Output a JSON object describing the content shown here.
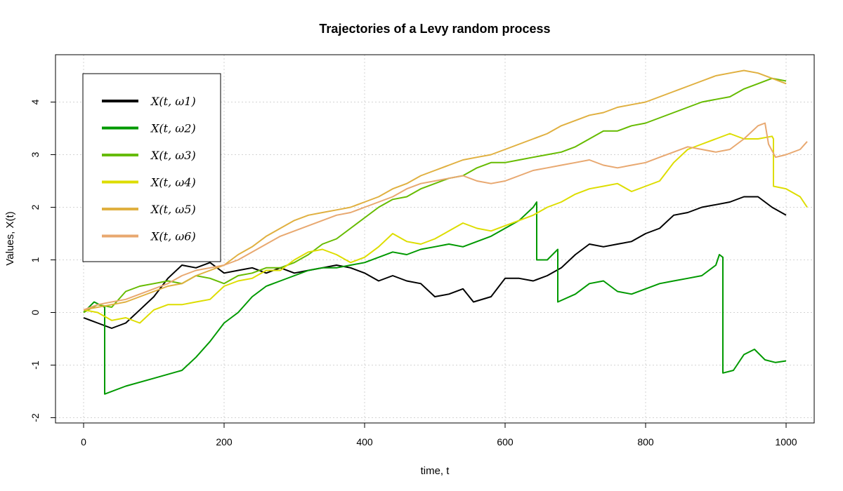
{
  "chart_data": {
    "type": "line",
    "title": "Trajectories of a Levy random process",
    "xlabel": "time, t",
    "ylabel": "Values, X(t)",
    "xlim": [
      -40,
      1040
    ],
    "ylim": [
      -2.1,
      4.9
    ],
    "xticks": [
      0,
      200,
      400,
      600,
      800,
      1000
    ],
    "yticks": [
      -2,
      -1,
      0,
      1,
      2,
      3,
      4
    ],
    "grid": true,
    "legend_position": "top-left",
    "series": [
      {
        "name": "X(t, ω1)",
        "color": "#000000",
        "points": [
          [
            0,
            -0.1
          ],
          [
            20,
            -0.2
          ],
          [
            40,
            -0.3
          ],
          [
            60,
            -0.2
          ],
          [
            80,
            0.05
          ],
          [
            100,
            0.3
          ],
          [
            120,
            0.65
          ],
          [
            140,
            0.9
          ],
          [
            160,
            0.85
          ],
          [
            180,
            0.95
          ],
          [
            200,
            0.75
          ],
          [
            220,
            0.8
          ],
          [
            240,
            0.85
          ],
          [
            260,
            0.75
          ],
          [
            280,
            0.85
          ],
          [
            300,
            0.75
          ],
          [
            320,
            0.8
          ],
          [
            340,
            0.85
          ],
          [
            360,
            0.9
          ],
          [
            380,
            0.85
          ],
          [
            400,
            0.75
          ],
          [
            420,
            0.6
          ],
          [
            440,
            0.7
          ],
          [
            460,
            0.6
          ],
          [
            480,
            0.55
          ],
          [
            500,
            0.3
          ],
          [
            520,
            0.35
          ],
          [
            540,
            0.45
          ],
          [
            555,
            0.2
          ],
          [
            580,
            0.3
          ],
          [
            600,
            0.65
          ],
          [
            620,
            0.65
          ],
          [
            640,
            0.6
          ],
          [
            660,
            0.7
          ],
          [
            680,
            0.85
          ],
          [
            700,
            1.1
          ],
          [
            720,
            1.3
          ],
          [
            740,
            1.25
          ],
          [
            760,
            1.3
          ],
          [
            780,
            1.35
          ],
          [
            800,
            1.5
          ],
          [
            820,
            1.6
          ],
          [
            840,
            1.85
          ],
          [
            860,
            1.9
          ],
          [
            880,
            2.0
          ],
          [
            900,
            2.05
          ],
          [
            920,
            2.1
          ],
          [
            940,
            2.2
          ],
          [
            960,
            2.2
          ],
          [
            980,
            2.0
          ],
          [
            1000,
            1.85
          ]
        ]
      },
      {
        "name": "X(t, ω2)",
        "color": "#009900",
        "points": [
          [
            0,
            0.0
          ],
          [
            15,
            0.2
          ],
          [
            30,
            0.1
          ],
          [
            30,
            -1.55
          ],
          [
            60,
            -1.4
          ],
          [
            100,
            -1.25
          ],
          [
            140,
            -1.1
          ],
          [
            160,
            -0.85
          ],
          [
            180,
            -0.55
          ],
          [
            200,
            -0.2
          ],
          [
            220,
            0.0
          ],
          [
            240,
            0.3
          ],
          [
            260,
            0.5
          ],
          [
            280,
            0.6
          ],
          [
            300,
            0.7
          ],
          [
            320,
            0.8
          ],
          [
            340,
            0.85
          ],
          [
            360,
            0.85
          ],
          [
            380,
            0.9
          ],
          [
            400,
            0.95
          ],
          [
            420,
            1.05
          ],
          [
            440,
            1.15
          ],
          [
            460,
            1.1
          ],
          [
            480,
            1.2
          ],
          [
            500,
            1.25
          ],
          [
            520,
            1.3
          ],
          [
            540,
            1.25
          ],
          [
            560,
            1.35
          ],
          [
            580,
            1.45
          ],
          [
            600,
            1.6
          ],
          [
            620,
            1.75
          ],
          [
            640,
            2.0
          ],
          [
            645,
            2.1
          ],
          [
            645,
            1.0
          ],
          [
            660,
            1.0
          ],
          [
            675,
            1.2
          ],
          [
            675,
            0.2
          ],
          [
            700,
            0.35
          ],
          [
            720,
            0.55
          ],
          [
            740,
            0.6
          ],
          [
            760,
            0.4
          ],
          [
            780,
            0.35
          ],
          [
            800,
            0.45
          ],
          [
            820,
            0.55
          ],
          [
            840,
            0.6
          ],
          [
            860,
            0.65
          ],
          [
            880,
            0.7
          ],
          [
            900,
            0.9
          ],
          [
            905,
            1.1
          ],
          [
            910,
            1.05
          ],
          [
            910,
            -1.15
          ],
          [
            925,
            -1.1
          ],
          [
            940,
            -0.8
          ],
          [
            955,
            -0.7
          ],
          [
            970,
            -0.9
          ],
          [
            985,
            -0.95
          ],
          [
            1000,
            -0.92
          ]
        ]
      },
      {
        "name": "X(t, ω3)",
        "color": "#66BB00",
        "points": [
          [
            0,
            0.0
          ],
          [
            20,
            0.15
          ],
          [
            40,
            0.1
          ],
          [
            60,
            0.4
          ],
          [
            80,
            0.5
          ],
          [
            100,
            0.55
          ],
          [
            120,
            0.6
          ],
          [
            140,
            0.55
          ],
          [
            160,
            0.7
          ],
          [
            180,
            0.65
          ],
          [
            200,
            0.55
          ],
          [
            220,
            0.7
          ],
          [
            240,
            0.75
          ],
          [
            260,
            0.85
          ],
          [
            280,
            0.85
          ],
          [
            300,
            0.95
          ],
          [
            320,
            1.1
          ],
          [
            340,
            1.3
          ],
          [
            360,
            1.4
          ],
          [
            380,
            1.6
          ],
          [
            400,
            1.8
          ],
          [
            420,
            2.0
          ],
          [
            440,
            2.15
          ],
          [
            460,
            2.2
          ],
          [
            480,
            2.35
          ],
          [
            500,
            2.45
          ],
          [
            520,
            2.55
          ],
          [
            540,
            2.6
          ],
          [
            560,
            2.75
          ],
          [
            580,
            2.85
          ],
          [
            600,
            2.85
          ],
          [
            620,
            2.9
          ],
          [
            640,
            2.95
          ],
          [
            660,
            3.0
          ],
          [
            680,
            3.05
          ],
          [
            700,
            3.15
          ],
          [
            720,
            3.3
          ],
          [
            740,
            3.45
          ],
          [
            760,
            3.45
          ],
          [
            780,
            3.55
          ],
          [
            800,
            3.6
          ],
          [
            820,
            3.7
          ],
          [
            840,
            3.8
          ],
          [
            860,
            3.9
          ],
          [
            880,
            4.0
          ],
          [
            900,
            4.05
          ],
          [
            920,
            4.1
          ],
          [
            940,
            4.25
          ],
          [
            960,
            4.35
          ],
          [
            980,
            4.45
          ],
          [
            1000,
            4.4
          ]
        ]
      },
      {
        "name": "X(t, ω4)",
        "color": "#DDDD00",
        "points": [
          [
            0,
            0.05
          ],
          [
            20,
            0.0
          ],
          [
            40,
            -0.15
          ],
          [
            60,
            -0.1
          ],
          [
            80,
            -0.2
          ],
          [
            100,
            0.05
          ],
          [
            120,
            0.15
          ],
          [
            140,
            0.15
          ],
          [
            160,
            0.2
          ],
          [
            180,
            0.25
          ],
          [
            200,
            0.5
          ],
          [
            220,
            0.6
          ],
          [
            240,
            0.65
          ],
          [
            260,
            0.8
          ],
          [
            280,
            0.8
          ],
          [
            300,
            1.0
          ],
          [
            320,
            1.15
          ],
          [
            340,
            1.2
          ],
          [
            360,
            1.1
          ],
          [
            380,
            0.95
          ],
          [
            400,
            1.05
          ],
          [
            420,
            1.25
          ],
          [
            440,
            1.5
          ],
          [
            460,
            1.35
          ],
          [
            480,
            1.3
          ],
          [
            500,
            1.4
          ],
          [
            520,
            1.55
          ],
          [
            540,
            1.7
          ],
          [
            560,
            1.6
          ],
          [
            580,
            1.55
          ],
          [
            600,
            1.65
          ],
          [
            620,
            1.75
          ],
          [
            640,
            1.85
          ],
          [
            660,
            2.0
          ],
          [
            680,
            2.1
          ],
          [
            700,
            2.25
          ],
          [
            720,
            2.35
          ],
          [
            740,
            2.4
          ],
          [
            760,
            2.45
          ],
          [
            780,
            2.3
          ],
          [
            800,
            2.4
          ],
          [
            820,
            2.5
          ],
          [
            840,
            2.85
          ],
          [
            860,
            3.1
          ],
          [
            880,
            3.2
          ],
          [
            900,
            3.3
          ],
          [
            920,
            3.4
          ],
          [
            940,
            3.3
          ],
          [
            960,
            3.3
          ],
          [
            980,
            3.35
          ],
          [
            982,
            3.3
          ],
          [
            982,
            2.4
          ],
          [
            1000,
            2.35
          ],
          [
            1020,
            2.2
          ],
          [
            1030,
            2.0
          ]
        ]
      },
      {
        "name": "X(t, ω5)",
        "color": "#E0B040",
        "points": [
          [
            0,
            0.05
          ],
          [
            20,
            0.1
          ],
          [
            40,
            0.15
          ],
          [
            60,
            0.2
          ],
          [
            80,
            0.3
          ],
          [
            100,
            0.4
          ],
          [
            120,
            0.5
          ],
          [
            140,
            0.55
          ],
          [
            160,
            0.7
          ],
          [
            180,
            0.8
          ],
          [
            200,
            0.9
          ],
          [
            220,
            1.1
          ],
          [
            240,
            1.25
          ],
          [
            260,
            1.45
          ],
          [
            280,
            1.6
          ],
          [
            300,
            1.75
          ],
          [
            320,
            1.85
          ],
          [
            340,
            1.9
          ],
          [
            360,
            1.95
          ],
          [
            380,
            2.0
          ],
          [
            400,
            2.1
          ],
          [
            420,
            2.2
          ],
          [
            440,
            2.35
          ],
          [
            460,
            2.45
          ],
          [
            480,
            2.6
          ],
          [
            500,
            2.7
          ],
          [
            520,
            2.8
          ],
          [
            540,
            2.9
          ],
          [
            560,
            2.95
          ],
          [
            580,
            3.0
          ],
          [
            600,
            3.1
          ],
          [
            620,
            3.2
          ],
          [
            640,
            3.3
          ],
          [
            660,
            3.4
          ],
          [
            680,
            3.55
          ],
          [
            700,
            3.65
          ],
          [
            720,
            3.75
          ],
          [
            740,
            3.8
          ],
          [
            760,
            3.9
          ],
          [
            780,
            3.95
          ],
          [
            800,
            4.0
          ],
          [
            820,
            4.1
          ],
          [
            840,
            4.2
          ],
          [
            860,
            4.3
          ],
          [
            880,
            4.4
          ],
          [
            900,
            4.5
          ],
          [
            920,
            4.55
          ],
          [
            940,
            4.6
          ],
          [
            960,
            4.55
          ],
          [
            980,
            4.45
          ],
          [
            1000,
            4.35
          ]
        ]
      },
      {
        "name": "X(t, ω6)",
        "color": "#E8A870",
        "points": [
          [
            0,
            0.05
          ],
          [
            20,
            0.15
          ],
          [
            40,
            0.2
          ],
          [
            60,
            0.25
          ],
          [
            80,
            0.35
          ],
          [
            100,
            0.45
          ],
          [
            120,
            0.55
          ],
          [
            140,
            0.7
          ],
          [
            160,
            0.8
          ],
          [
            180,
            0.85
          ],
          [
            200,
            0.9
          ],
          [
            220,
            1.0
          ],
          [
            240,
            1.15
          ],
          [
            260,
            1.3
          ],
          [
            280,
            1.45
          ],
          [
            300,
            1.55
          ],
          [
            320,
            1.65
          ],
          [
            340,
            1.75
          ],
          [
            360,
            1.85
          ],
          [
            380,
            1.9
          ],
          [
            400,
            2.0
          ],
          [
            420,
            2.1
          ],
          [
            440,
            2.2
          ],
          [
            460,
            2.35
          ],
          [
            480,
            2.45
          ],
          [
            500,
            2.5
          ],
          [
            520,
            2.55
          ],
          [
            540,
            2.6
          ],
          [
            560,
            2.5
          ],
          [
            580,
            2.45
          ],
          [
            600,
            2.5
          ],
          [
            620,
            2.6
          ],
          [
            640,
            2.7
          ],
          [
            660,
            2.75
          ],
          [
            680,
            2.8
          ],
          [
            700,
            2.85
          ],
          [
            720,
            2.9
          ],
          [
            740,
            2.8
          ],
          [
            760,
            2.75
          ],
          [
            780,
            2.8
          ],
          [
            800,
            2.85
          ],
          [
            820,
            2.95
          ],
          [
            840,
            3.05
          ],
          [
            860,
            3.15
          ],
          [
            880,
            3.1
          ],
          [
            900,
            3.05
          ],
          [
            920,
            3.1
          ],
          [
            940,
            3.3
          ],
          [
            960,
            3.55
          ],
          [
            970,
            3.6
          ],
          [
            975,
            3.2
          ],
          [
            985,
            2.95
          ],
          [
            1000,
            3.0
          ],
          [
            1020,
            3.1
          ],
          [
            1030,
            3.25
          ]
        ]
      }
    ]
  }
}
